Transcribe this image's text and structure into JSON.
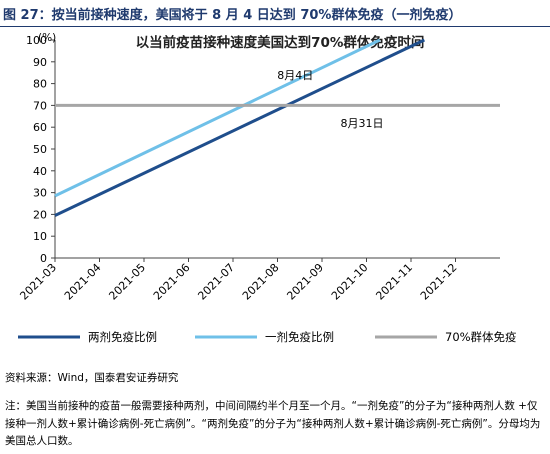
{
  "figure": {
    "title": "图 27：按当前接种速度，美国将于 8 月 4 日达到 70%群体免疫（一剂免疫）",
    "source": "资料来源：Wind，国泰君安证券研究",
    "note": "注：美国当前接种的疫苗一般需要接种两剂，中间间隔约半个月至一个月。“一剂免疫”的分子为“接种两剂人数 +仅接种一剂人数+累计确诊病例-死亡病例”。“两剂免疫”的分子为“接种两剂人数+累计确诊病例-死亡病例”。分母均为美国总人口数。"
  },
  "chart_data": {
    "type": "line",
    "title": "以当前疫苗接种速度美国达到70%群体免疫时间",
    "ylabel": "(%)",
    "ylim": [
      0,
      100
    ],
    "yticks": [
      0,
      10,
      20,
      30,
      40,
      50,
      60,
      70,
      80,
      90,
      100
    ],
    "x_categories": [
      "2021-03",
      "2021-04",
      "2021-05",
      "2021-06",
      "2021-07",
      "2021-08",
      "2021-09",
      "2021-10",
      "2021-11",
      "2021-12"
    ],
    "xlim": [
      0,
      10
    ],
    "grid": false,
    "legend_position": "bottom",
    "series": [
      {
        "name": "两剂免疫比例",
        "color": "#1f4e8c",
        "x": [
          0,
          8.3
        ],
        "y": [
          19.5,
          100
        ]
      },
      {
        "name": "一剂免疫比例",
        "color": "#6fc0e8",
        "x": [
          0,
          7.3
        ],
        "y": [
          28.5,
          100
        ]
      },
      {
        "name": "70%群体免疫",
        "color": "#a6a6a6",
        "x": [
          0,
          10
        ],
        "y": [
          70,
          70
        ]
      }
    ],
    "annotations": [
      {
        "text": "8月4日",
        "x": 5.4,
        "y": 82
      },
      {
        "text": "8月31日",
        "x": 6.9,
        "y": 60
      }
    ]
  }
}
